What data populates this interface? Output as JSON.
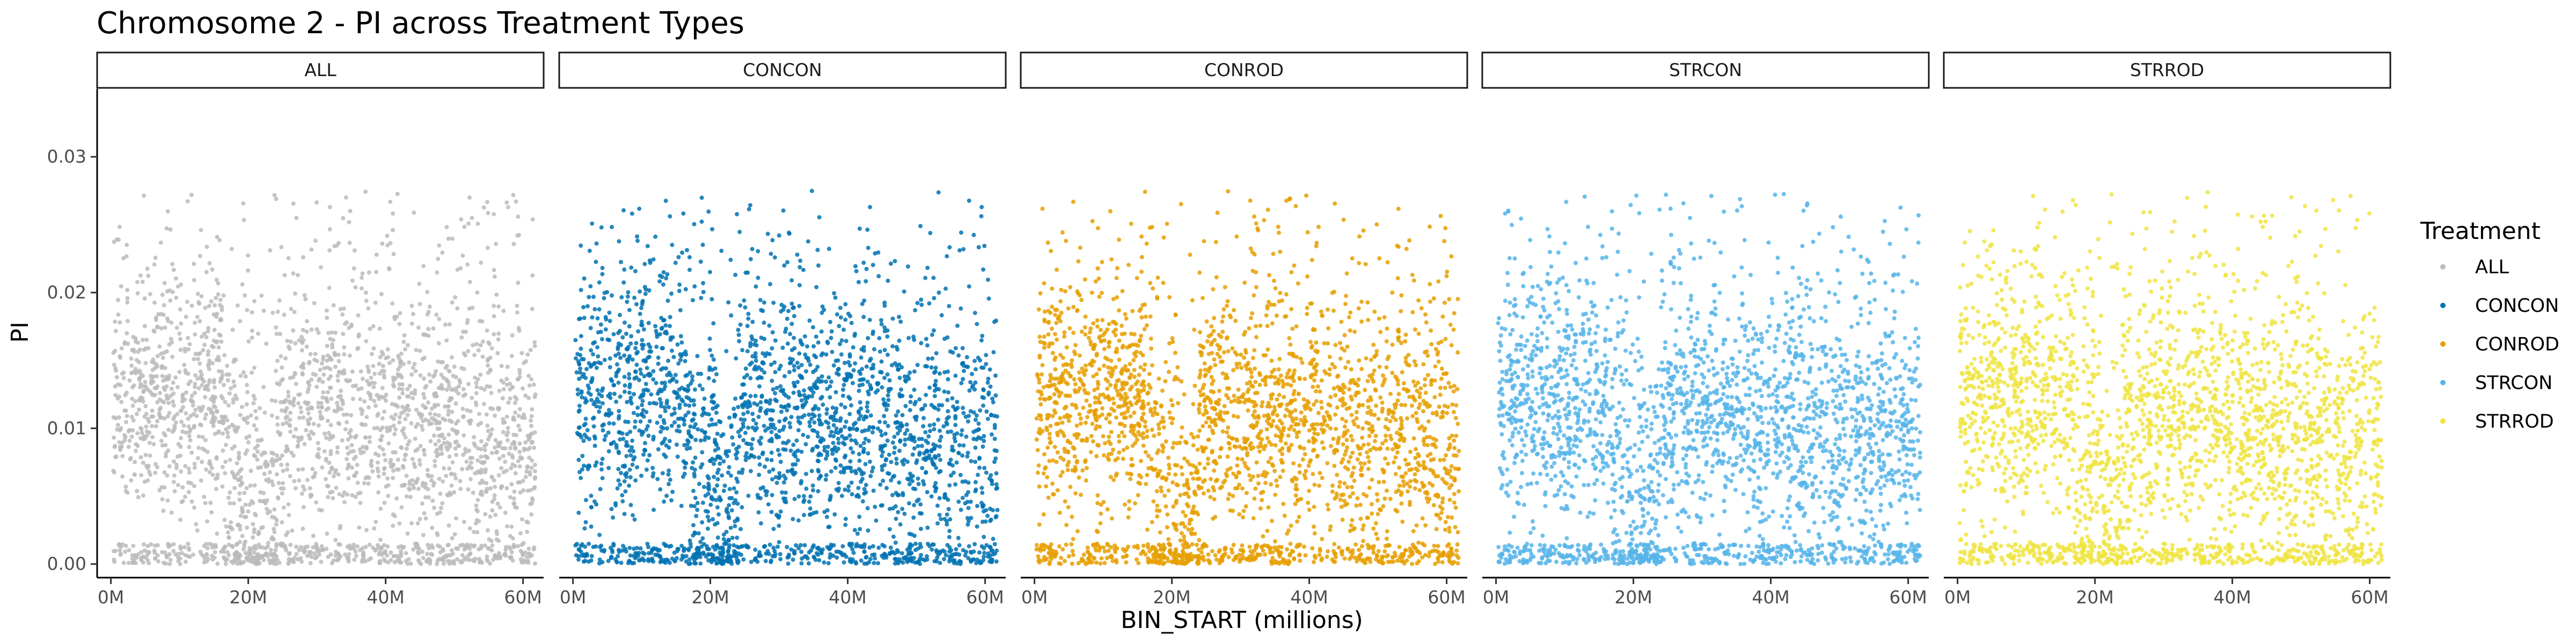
{
  "chart_data": {
    "type": "scatter",
    "title": "Chromosome 2 - PI across Treatment Types",
    "xlabel": "BIN_START (millions)",
    "ylabel": "PI",
    "x_unit": "millions",
    "xlim": [
      -2,
      63
    ],
    "ylim": [
      -0.001,
      0.035
    ],
    "x_ticks": [
      0,
      20,
      40,
      60
    ],
    "x_tick_labels": [
      "0M",
      "20M",
      "40M",
      "60M"
    ],
    "y_ticks": [
      0.0,
      0.01,
      0.02,
      0.03
    ],
    "y_tick_labels": [
      "0.00",
      "0.01",
      "0.02",
      "0.03"
    ],
    "grid": false,
    "legend": {
      "title": "Treatment",
      "position": "right"
    },
    "facets": [
      "ALL",
      "CONCON",
      "CONROD",
      "STRCON",
      "STRROD"
    ],
    "series": [
      {
        "name": "ALL",
        "color": "#bbbbbb"
      },
      {
        "name": "CONCON",
        "color": "#0072b2"
      },
      {
        "name": "CONROD",
        "color": "#e69f00"
      },
      {
        "name": "STRCON",
        "color": "#56b4e9"
      },
      {
        "name": "STRROD",
        "color": "#f0e442"
      }
    ],
    "density_profile": {
      "description_of_values": "approximate per-region mean PI and spread read from the plot (x in millions)",
      "regions": [
        {
          "x_range": [
            0,
            17
          ],
          "mean": 0.0125,
          "spread": 0.0045
        },
        {
          "x_range": [
            17,
            21
          ],
          "mean": 0.007,
          "spread": 0.006
        },
        {
          "x_range": [
            21,
            24
          ],
          "mean": 0.004,
          "spread": 0.005
        },
        {
          "x_range": [
            24,
            38
          ],
          "mean": 0.011,
          "spread": 0.0045
        },
        {
          "x_range": [
            38,
            46
          ],
          "mean": 0.0105,
          "spread": 0.0045
        },
        {
          "x_range": [
            46,
            62
          ],
          "mean": 0.0095,
          "spread": 0.005
        }
      ],
      "max_observed": 0.0275
    }
  }
}
